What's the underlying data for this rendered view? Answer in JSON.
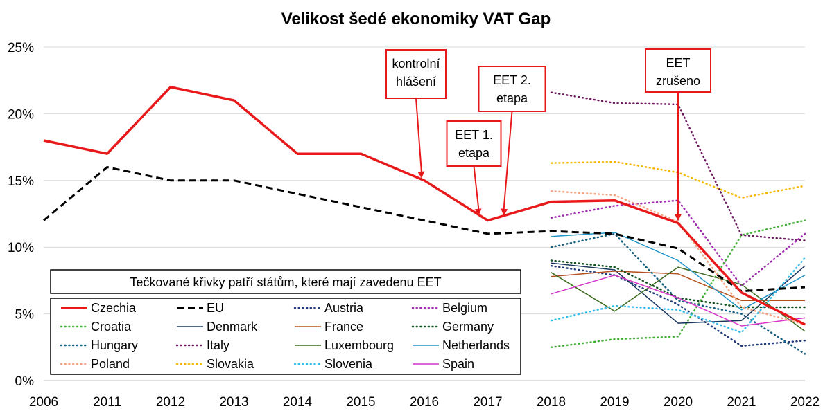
{
  "chart_data": {
    "type": "line",
    "title": "Velikost šedé ekonomiky VAT Gap",
    "xlabel": "",
    "ylabel": "",
    "categories": [
      "2006",
      "2011",
      "2012",
      "2013",
      "2014",
      "2015",
      "2016",
      "2017",
      "2018",
      "2019",
      "2020",
      "2021",
      "2022"
    ],
    "y_ticks": [
      "0%",
      "5%",
      "10%",
      "15%",
      "20%",
      "25%"
    ],
    "ylim": [
      0,
      25
    ],
    "grid": "horizontal",
    "legend_placement": "bottom-left inside plot",
    "legend_note": "Tečkované křivky patří státům, které mají zavedenu EET",
    "series": [
      {
        "name": "Czechia",
        "color": "#e8191a",
        "style": "solid",
        "width": 3.5,
        "values": [
          18,
          17,
          22,
          21,
          17,
          17,
          15,
          12,
          13.4,
          13.5,
          11.8,
          6.6,
          4.2
        ]
      },
      {
        "name": "EU",
        "color": "#000000",
        "style": "dashed",
        "width": 3,
        "values": [
          12,
          16,
          15,
          15,
          14,
          13,
          12,
          11,
          11.2,
          11,
          9.9,
          6.7,
          7
        ]
      },
      {
        "name": "Austria",
        "color": "#1f3a7a",
        "style": "dotted",
        "width": 2.5,
        "values": [
          null,
          null,
          null,
          null,
          null,
          null,
          null,
          null,
          8.6,
          7.9,
          5.7,
          2.6,
          3
        ]
      },
      {
        "name": "Belgium",
        "color": "#a02cb0",
        "style": "dotted",
        "width": 2.5,
        "values": [
          null,
          null,
          null,
          null,
          null,
          null,
          null,
          null,
          12.2,
          13.1,
          13.5,
          7.1,
          11
        ]
      },
      {
        "name": "Croatia",
        "color": "#45b13a",
        "style": "dotted",
        "width": 2.5,
        "values": [
          null,
          null,
          null,
          null,
          null,
          null,
          null,
          null,
          2.5,
          3.1,
          3.3,
          10.9,
          12
        ]
      },
      {
        "name": "Denmark",
        "color": "#17365d",
        "style": "solid",
        "width": 1.5,
        "values": [
          null,
          null,
          null,
          null,
          null,
          null,
          null,
          null,
          8.8,
          8.3,
          4.3,
          4.5,
          8.6
        ]
      },
      {
        "name": "France",
        "color": "#b5501c",
        "style": "solid",
        "width": 1.5,
        "values": [
          null,
          null,
          null,
          null,
          null,
          null,
          null,
          null,
          7.8,
          8.2,
          8,
          6,
          6
        ]
      },
      {
        "name": "Germany",
        "color": "#0f4f1f",
        "style": "dotted",
        "width": 2.5,
        "values": [
          null,
          null,
          null,
          null,
          null,
          null,
          null,
          null,
          9,
          8.5,
          6.2,
          5.5,
          5.5
        ]
      },
      {
        "name": "Hungary",
        "color": "#146080",
        "style": "dotted",
        "width": 2.5,
        "values": [
          null,
          null,
          null,
          null,
          null,
          null,
          null,
          null,
          10,
          11,
          6,
          5,
          2
        ]
      },
      {
        "name": "Italy",
        "color": "#6b1a5e",
        "style": "dotted",
        "width": 2.5,
        "values": [
          null,
          null,
          null,
          null,
          null,
          null,
          null,
          null,
          21.6,
          20.8,
          20.7,
          10.9,
          10.5
        ]
      },
      {
        "name": "Luxembourg",
        "color": "#3d6b1f",
        "style": "solid",
        "width": 1.5,
        "values": [
          null,
          null,
          null,
          null,
          null,
          null,
          null,
          null,
          8.1,
          5.2,
          8.5,
          7.2,
          3.7
        ]
      },
      {
        "name": "Netherlands",
        "color": "#2196c8",
        "style": "solid",
        "width": 1.5,
        "values": [
          null,
          null,
          null,
          null,
          null,
          null,
          null,
          null,
          10.8,
          11.1,
          9,
          5.3,
          7.9
        ]
      },
      {
        "name": "Poland",
        "color": "#f4a582",
        "style": "dotted",
        "width": 2.5,
        "values": [
          null,
          null,
          null,
          null,
          null,
          null,
          null,
          null,
          14.2,
          13.9,
          11.9,
          5.5,
          4.2
        ]
      },
      {
        "name": "Slovakia",
        "color": "#f5b800",
        "style": "dotted",
        "width": 2.5,
        "values": [
          null,
          null,
          null,
          null,
          null,
          null,
          null,
          null,
          16.3,
          16.4,
          15.6,
          13.7,
          14.6
        ]
      },
      {
        "name": "Slovenia",
        "color": "#36bdea",
        "style": "dotted",
        "width": 2.5,
        "values": [
          null,
          null,
          null,
          null,
          null,
          null,
          null,
          null,
          4.5,
          5.6,
          5.3,
          3.6,
          9.2
        ]
      },
      {
        "name": "Spain",
        "color": "#d633c8",
        "style": "solid",
        "width": 1.5,
        "values": [
          null,
          null,
          null,
          null,
          null,
          null,
          null,
          null,
          6.5,
          7.9,
          6.2,
          4.1,
          4.7
        ]
      }
    ],
    "annotations": [
      {
        "lines": [
          "kontrolní",
          "hlášení"
        ],
        "x_index": 6,
        "y": 15
      },
      {
        "lines": [
          "EET 1.",
          "etapa"
        ],
        "x_index": 7,
        "y": 12.2
      },
      {
        "lines": [
          "EET 2.",
          "etapa"
        ],
        "x_index": 7.3,
        "y": 12.2
      },
      {
        "lines": [
          "EET",
          "zrušeno"
        ],
        "x_index": 10,
        "y": 11.8
      }
    ]
  }
}
